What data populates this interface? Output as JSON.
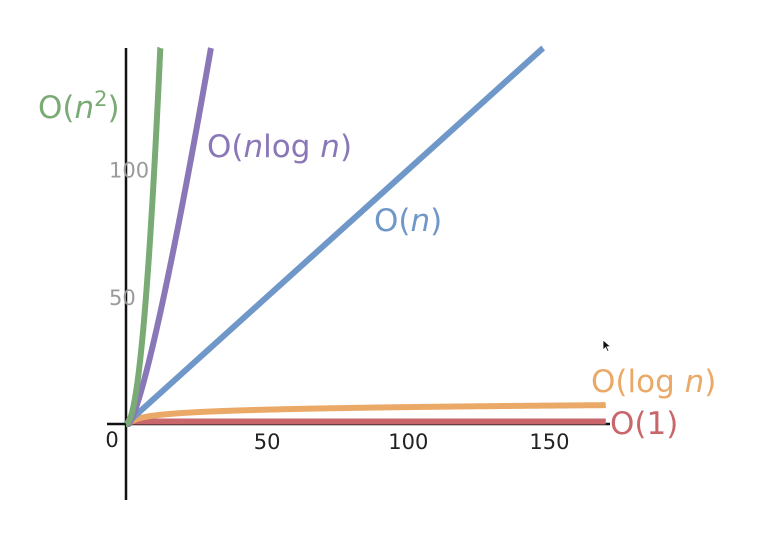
{
  "chart_data": {
    "type": "line",
    "title": "",
    "xlabel": "",
    "ylabel": "",
    "xlim": [
      0,
      170
    ],
    "ylim": [
      -27,
      135
    ],
    "grid": false,
    "legend": "inline labels at line ends",
    "origin_label": "0",
    "xticks": [
      {
        "value": 50,
        "label": "50"
      },
      {
        "value": 100,
        "label": "100"
      },
      {
        "value": 150,
        "label": "150"
      }
    ],
    "yticks": [
      {
        "value": 50,
        "label": "50"
      },
      {
        "value": 100,
        "label": "100"
      }
    ],
    "series": [
      {
        "name": "O(n2)",
        "color": "#7aab74",
        "function": "n^2",
        "label_parts": [
          [
            "O(",
            "normal"
          ],
          [
            "n",
            "italic"
          ],
          [
            "2",
            "sup"
          ],
          [
            ")",
            "normal"
          ]
        ]
      },
      {
        "name": "O(nlog n)",
        "color": "#8a77b8",
        "function": "n*log2(n)",
        "label_parts": [
          [
            "O(",
            "normal"
          ],
          [
            "n",
            "italic"
          ],
          [
            "log ",
            "normal"
          ],
          [
            "n",
            "italic"
          ],
          [
            ")",
            "normal"
          ]
        ]
      },
      {
        "name": "O(n)",
        "color": "#6f97c8",
        "function": "n",
        "label_parts": [
          [
            "O(",
            "normal"
          ],
          [
            "n",
            "italic"
          ],
          [
            ")",
            "normal"
          ]
        ]
      },
      {
        "name": "O(log n)",
        "color": "#eba967",
        "function": "log2(n)",
        "label_parts": [
          [
            "O(log ",
            "normal"
          ],
          [
            "n",
            "italic"
          ],
          [
            ")",
            "normal"
          ]
        ]
      },
      {
        "name": "O(1)",
        "color": "#c9666c",
        "function": "1",
        "label_parts": [
          [
            "O(1)",
            "normal"
          ]
        ]
      }
    ]
  }
}
